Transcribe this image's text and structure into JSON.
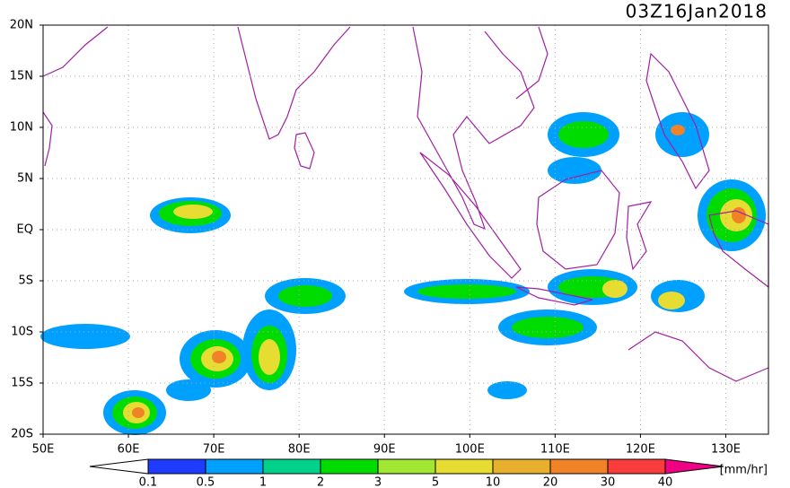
{
  "title": "03Z16Jan2018",
  "lat_labels": [
    "20N",
    "15N",
    "10N",
    "5N",
    "EQ",
    "5S",
    "10S",
    "15S",
    "20S"
  ],
  "lon_labels": [
    "50E",
    "60E",
    "70E",
    "80E",
    "90E",
    "100E",
    "110E",
    "120E",
    "130E"
  ],
  "colorbar": {
    "levels": [
      0.1,
      0.5,
      1,
      2,
      3,
      5,
      10,
      20,
      30,
      40
    ],
    "colors": [
      "#ffffff",
      "#1e3cff",
      "#00a0ff",
      "#00d28c",
      "#00dc00",
      "#a0e632",
      "#e6dc32",
      "#e6af2d",
      "#f08228",
      "#fa3c3c",
      "#f00082"
    ],
    "unit": "[mm/hr]"
  }
}
